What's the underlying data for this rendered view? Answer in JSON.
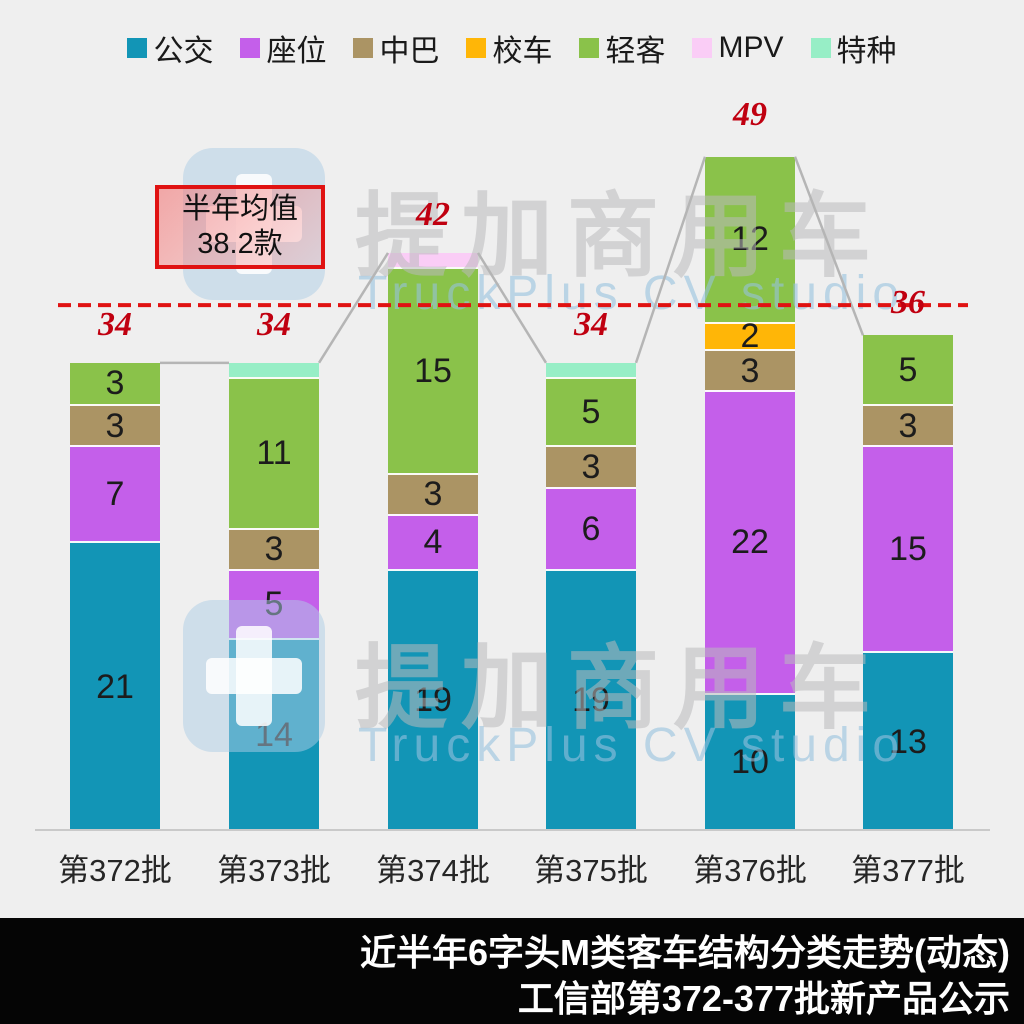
{
  "legend": {
    "items": [
      {
        "label": "公交",
        "color": "#1295b6"
      },
      {
        "label": "座位",
        "color": "#c45fea"
      },
      {
        "label": "中巴",
        "color": "#ab9464"
      },
      {
        "label": "校车",
        "color": "#ffb607"
      },
      {
        "label": "轻客",
        "color": "#8ac24a"
      },
      {
        "label": "MPV",
        "color": "#facdf6"
      },
      {
        "label": "特种",
        "color": "#97eec6"
      }
    ]
  },
  "chart_data": {
    "type": "bar",
    "subtype": "stacked-vertical",
    "categories": [
      "第372批",
      "第373批",
      "第374批",
      "第375批",
      "第376批",
      "第377批"
    ],
    "series": [
      {
        "name": "公交",
        "color": "#1295b6",
        "values": [
          21,
          14,
          19,
          19,
          10,
          13
        ]
      },
      {
        "name": "座位",
        "color": "#c45fea",
        "values": [
          7,
          5,
          4,
          6,
          22,
          15
        ]
      },
      {
        "name": "中巴",
        "color": "#ab9464",
        "values": [
          3,
          3,
          3,
          3,
          3,
          3
        ]
      },
      {
        "name": "校车",
        "color": "#ffb607",
        "values": [
          0,
          0,
          0,
          0,
          2,
          0
        ]
      },
      {
        "name": "轻客",
        "color": "#8ac24a",
        "values": [
          3,
          11,
          15,
          5,
          12,
          5
        ]
      },
      {
        "name": "MPV",
        "color": "#facdf6",
        "values": [
          0,
          0,
          1,
          0,
          0,
          0
        ]
      },
      {
        "name": "特种",
        "color": "#97eec6",
        "values": [
          0,
          1,
          0,
          1,
          0,
          0
        ]
      }
    ],
    "totals": [
      34,
      34,
      42,
      34,
      49,
      36
    ],
    "totals_color": "#c00010",
    "average_line": {
      "value": 38.2,
      "color": "#e01212",
      "style": "dashed"
    },
    "connector_line_color": "#b5b5b5",
    "legend_position": "top-center",
    "grid": false,
    "ylim": [
      0,
      49
    ]
  },
  "annotation_box": {
    "line1": "半年均值",
    "line2": "38.2款"
  },
  "watermark": {
    "brand": "提加商用车",
    "studio": "TruckPlus CV studio"
  },
  "footer": {
    "line1": "近半年6字头M类客车结构分类走势(动态)",
    "line2": "工信部第372-377批新产品公示"
  }
}
